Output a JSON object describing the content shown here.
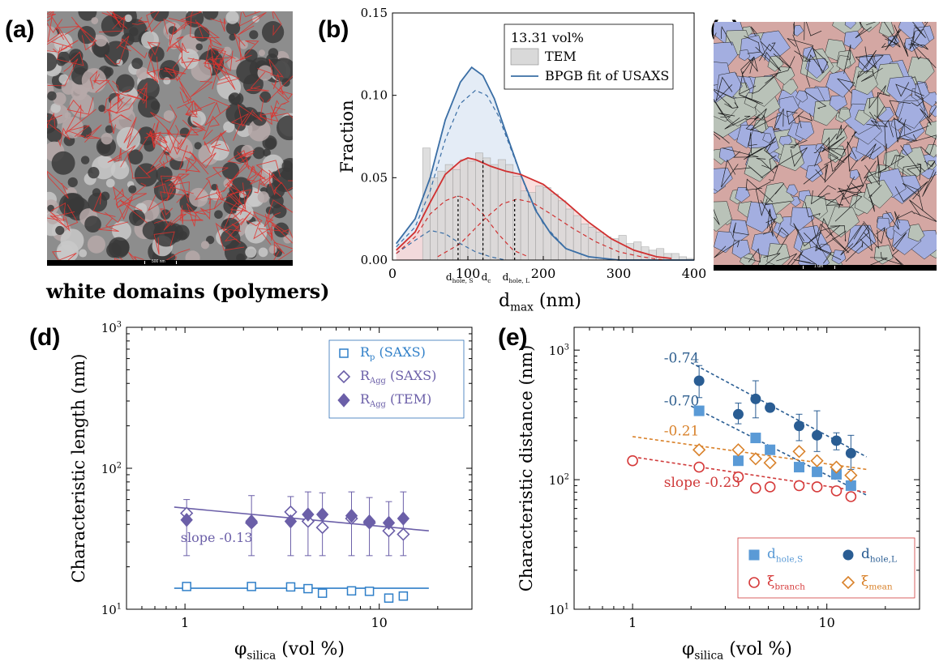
{
  "labels": {
    "a": "(a)",
    "b": "(b)",
    "c": "(c)",
    "d": "(d)",
    "e": "(e)"
  },
  "panel_a": {
    "caption": "white domains (polymers)",
    "scalebar": "500 nm"
  },
  "panel_c": {
    "scalebar": "1 um"
  },
  "chart_data": [
    {
      "panel": "b",
      "type": "bar",
      "xlabel": "d",
      "xlabel_sub": "max",
      "xlabel_unit": " (nm)",
      "ylabel": "Fraction",
      "xlim": [
        0,
        400
      ],
      "ylim": [
        0,
        0.15
      ],
      "xticks": [
        0,
        100,
        200,
        300,
        400
      ],
      "yticks": [
        0.0,
        0.05,
        0.1,
        0.15
      ],
      "ytick_labels": [
        "0.00",
        "0.05",
        "0.10",
        "0.15"
      ],
      "legend_title": "13.31 vol%",
      "legend": [
        {
          "name": "TEM",
          "kind": "bar"
        },
        {
          "name": "BPGB fit of USAXS",
          "kind": "line"
        }
      ],
      "marker_labels": [
        {
          "base": "d",
          "sub": "hole, S",
          "x": 87
        },
        {
          "base": "d",
          "sub": "c",
          "x": 120
        },
        {
          "base": "d",
          "sub": "hole, L",
          "x": 162
        }
      ],
      "hist_bin_width": 10,
      "hist_start": 40,
      "tem_hist": [
        0.068,
        0.05,
        0.054,
        0.058,
        0.055,
        0.061,
        0.06,
        0.065,
        0.062,
        0.058,
        0.061,
        0.058,
        0.051,
        0.042,
        0.041,
        0.045,
        0.044,
        0.04,
        0.036,
        0.031,
        0.027,
        0.022,
        0.02,
        0.017,
        0.014,
        0.013,
        0.015,
        0.01,
        0.011,
        0.008,
        0.006,
        0.007,
        0.004,
        0.004,
        0.002,
        0.001
      ],
      "curves": [
        {
          "name": "blue-solid",
          "color": "#3a6ea5",
          "style": "solid",
          "fill": "#dbe5f3",
          "x": [
            5,
            30,
            50,
            70,
            90,
            105,
            120,
            135,
            150,
            170,
            190,
            210,
            230,
            260,
            300,
            350,
            400
          ],
          "y": [
            0.01,
            0.025,
            0.05,
            0.085,
            0.108,
            0.117,
            0.112,
            0.098,
            0.078,
            0.052,
            0.03,
            0.016,
            0.007,
            0.002,
            0.0,
            0.0,
            0.0
          ]
        },
        {
          "name": "blue-dashed",
          "color": "#3a6ea5",
          "style": "dashed",
          "x": [
            5,
            30,
            50,
            70,
            90,
            110,
            125,
            140,
            160,
            180,
            200,
            230,
            260,
            300
          ],
          "y": [
            0.008,
            0.02,
            0.042,
            0.073,
            0.095,
            0.103,
            0.1,
            0.088,
            0.064,
            0.04,
            0.022,
            0.007,
            0.002,
            0.0
          ]
        },
        {
          "name": "blue-dashed-small",
          "color": "#3a6ea5",
          "style": "dashed",
          "x": [
            5,
            30,
            50,
            70,
            90,
            110,
            130,
            150
          ],
          "y": [
            0.004,
            0.012,
            0.018,
            0.016,
            0.01,
            0.005,
            0.002,
            0.0
          ]
        },
        {
          "name": "red-solid",
          "color": "#d03030",
          "style": "solid",
          "fill": "#f7d3d1",
          "x": [
            5,
            30,
            50,
            70,
            90,
            100,
            110,
            130,
            150,
            170,
            200,
            230,
            260,
            290,
            320,
            350,
            370
          ],
          "y": [
            0.006,
            0.017,
            0.035,
            0.052,
            0.06,
            0.062,
            0.061,
            0.057,
            0.054,
            0.052,
            0.046,
            0.035,
            0.023,
            0.013,
            0.006,
            0.002,
            0.001
          ]
        },
        {
          "name": "red-dashed-small",
          "color": "#d03030",
          "style": "dashed",
          "x": [
            5,
            30,
            50,
            70,
            87,
            100,
            120,
            140,
            160,
            180
          ],
          "y": [
            0.004,
            0.014,
            0.028,
            0.036,
            0.039,
            0.037,
            0.028,
            0.016,
            0.006,
            0.002
          ]
        },
        {
          "name": "red-dashed-large",
          "color": "#d03030",
          "style": "dashed",
          "x": [
            60,
            90,
            120,
            145,
            165,
            185,
            210,
            240,
            270,
            300,
            330,
            360
          ],
          "y": [
            0.002,
            0.01,
            0.024,
            0.034,
            0.037,
            0.035,
            0.028,
            0.019,
            0.011,
            0.005,
            0.002,
            0.0
          ]
        }
      ],
      "vlines": [
        {
          "x": 87,
          "y": 0.039
        },
        {
          "x": 120,
          "y": 0.061
        },
        {
          "x": 162,
          "y": 0.037
        }
      ]
    },
    {
      "panel": "d",
      "type": "scatter",
      "xlabel": "φ",
      "xlabel_sub": "silica",
      "xlabel_unit": " (vol %)",
      "ylabel": "Characteristic length (nm)",
      "xscale": "log",
      "yscale": "log",
      "xlim": [
        0.5,
        30
      ],
      "ylim": [
        10,
        1000
      ],
      "xticks": [
        1,
        10
      ],
      "yticks": [
        10,
        100,
        1000
      ],
      "ytick_labels": [
        {
          "base": "10",
          "exp": "1"
        },
        {
          "base": "10",
          "exp": "2"
        },
        {
          "base": "10",
          "exp": "3"
        }
      ],
      "annotation": "slope -0.13",
      "legend": [
        {
          "base": "R",
          "sub": "p",
          "suffix": " (SAXS)",
          "marker": "open-square",
          "color": "#2f7fc8"
        },
        {
          "base": "R",
          "sub": "Agg",
          "suffix": " (SAXS)",
          "marker": "open-diamond",
          "color": "#6b5fa8"
        },
        {
          "base": "R",
          "sub": "Agg",
          "suffix": " (TEM)",
          "marker": "filled-diamond",
          "color": "#6b5fa8"
        }
      ],
      "series": [
        {
          "name": "R_p (SAXS)",
          "color": "#2f7fc8",
          "marker": "open-square",
          "x": [
            1.02,
            2.2,
            3.5,
            4.3,
            5.1,
            7.2,
            8.9,
            11.2,
            13.3
          ],
          "y": [
            14.5,
            14.5,
            14.4,
            14.0,
            13.0,
            13.5,
            13.4,
            12.0,
            12.4
          ]
        },
        {
          "name": "R_Agg (SAXS)",
          "color": "#6b5fa8",
          "marker": "open-diamond",
          "x": [
            1.02,
            2.2,
            3.5,
            4.3,
            5.1,
            7.2,
            8.9,
            11.2,
            13.3
          ],
          "y": [
            48,
            41,
            49,
            42,
            38,
            44,
            41,
            36,
            34
          ],
          "yerr_low": [
            24,
            24,
            24,
            24,
            24,
            24,
            24,
            24,
            24
          ],
          "yerr_high": [
            60,
            64,
            63,
            68,
            67,
            68,
            62,
            58,
            68
          ]
        },
        {
          "name": "R_Agg (TEM)",
          "color": "#6b5fa8",
          "marker": "filled-diamond",
          "x": [
            1.02,
            2.2,
            3.5,
            4.3,
            5.1,
            7.2,
            8.9,
            11.2,
            13.3
          ],
          "y": [
            43,
            42,
            42,
            47,
            47,
            46,
            42,
            41,
            44
          ]
        }
      ],
      "fits": [
        {
          "color": "#6b5fa8",
          "x": [
            0.88,
            18
          ],
          "y": [
            53,
            36
          ]
        },
        {
          "color": "#2f7fc8",
          "x": [
            0.88,
            18
          ],
          "y": [
            14.1,
            14.1
          ]
        }
      ]
    },
    {
      "panel": "e",
      "type": "scatter",
      "xlabel": "φ",
      "xlabel_sub": "silica",
      "xlabel_unit": " (vol %)",
      "ylabel": "Characteristic distance (nm)",
      "xscale": "log",
      "yscale": "log",
      "xlim": [
        0.5,
        30
      ],
      "ylim": [
        10,
        1500
      ],
      "xticks": [
        1,
        10
      ],
      "yticks": [
        10,
        100,
        1000
      ],
      "ytick_labels": [
        {
          "base": "10",
          "exp": "1"
        },
        {
          "base": "10",
          "exp": "2"
        },
        {
          "base": "10",
          "exp": "3"
        }
      ],
      "annotations": [
        {
          "text": "-0.74",
          "color": "#2f5f8f",
          "x": 1.45,
          "y": 800
        },
        {
          "text": "-0.70",
          "color": "#2f5f8f",
          "x": 1.45,
          "y": 375
        },
        {
          "text": "-0.21",
          "color": "#d9822b",
          "x": 1.45,
          "y": 220
        },
        {
          "text": "slope -0.23",
          "color": "#d03a3a",
          "x": 1.45,
          "y": 88
        }
      ],
      "legend": [
        {
          "base": "d",
          "sub": "hole,S",
          "marker": "filled-square",
          "color": "#5a9ad6"
        },
        {
          "base": "d",
          "sub": "hole,L",
          "marker": "filled-circle",
          "color": "#2a5d93"
        },
        {
          "base": "ξ",
          "sub": "branch",
          "marker": "open-circle",
          "color": "#d63a3a"
        },
        {
          "base": "ξ",
          "sub": "mean",
          "marker": "open-diamond",
          "color": "#d9822b"
        }
      ],
      "series": [
        {
          "name": "d_hole,S",
          "color": "#5a9ad6",
          "marker": "filled-square",
          "x": [
            2.2,
            3.5,
            4.3,
            5.1,
            7.2,
            8.9,
            11.2,
            13.3
          ],
          "y": [
            340,
            140,
            210,
            170,
            125,
            115,
            110,
            90
          ]
        },
        {
          "name": "d_hole,L",
          "color": "#2a5d93",
          "marker": "filled-circle",
          "x": [
            2.2,
            3.5,
            4.3,
            5.1,
            7.2,
            8.9,
            11.2,
            13.3
          ],
          "y": [
            580,
            320,
            420,
            360,
            260,
            220,
            200,
            160
          ],
          "yerr_low": [
            430,
            270,
            300,
            340,
            200,
            165,
            170,
            120
          ],
          "yerr_high": [
            760,
            390,
            580,
            370,
            320,
            340,
            230,
            220
          ]
        },
        {
          "name": "ξ_branch",
          "color": "#d63a3a",
          "marker": "open-circle",
          "x": [
            1.0,
            2.2,
            3.5,
            4.3,
            5.1,
            7.2,
            8.9,
            11.2,
            13.3
          ],
          "y": [
            140,
            125,
            105,
            86,
            88,
            90,
            88,
            82,
            74
          ]
        },
        {
          "name": "ξ_mean",
          "color": "#d9822b",
          "marker": "open-diamond",
          "x": [
            2.2,
            3.5,
            4.3,
            5.1,
            7.2,
            8.9,
            11.2,
            13.3
          ],
          "y": [
            170,
            170,
            145,
            135,
            165,
            140,
            125,
            108
          ]
        }
      ],
      "fits": [
        {
          "color": "#2a5d93",
          "x": [
            2.0,
            16
          ],
          "y": [
            800,
            150
          ]
        },
        {
          "color": "#2a5d93",
          "x": [
            2.0,
            16
          ],
          "y": [
            370,
            76
          ]
        },
        {
          "color": "#d9822b",
          "x": [
            1.0,
            16
          ],
          "y": [
            215,
            120
          ]
        },
        {
          "color": "#d03a3a",
          "x": [
            1.0,
            16
          ],
          "y": [
            150,
            80
          ]
        }
      ]
    }
  ]
}
